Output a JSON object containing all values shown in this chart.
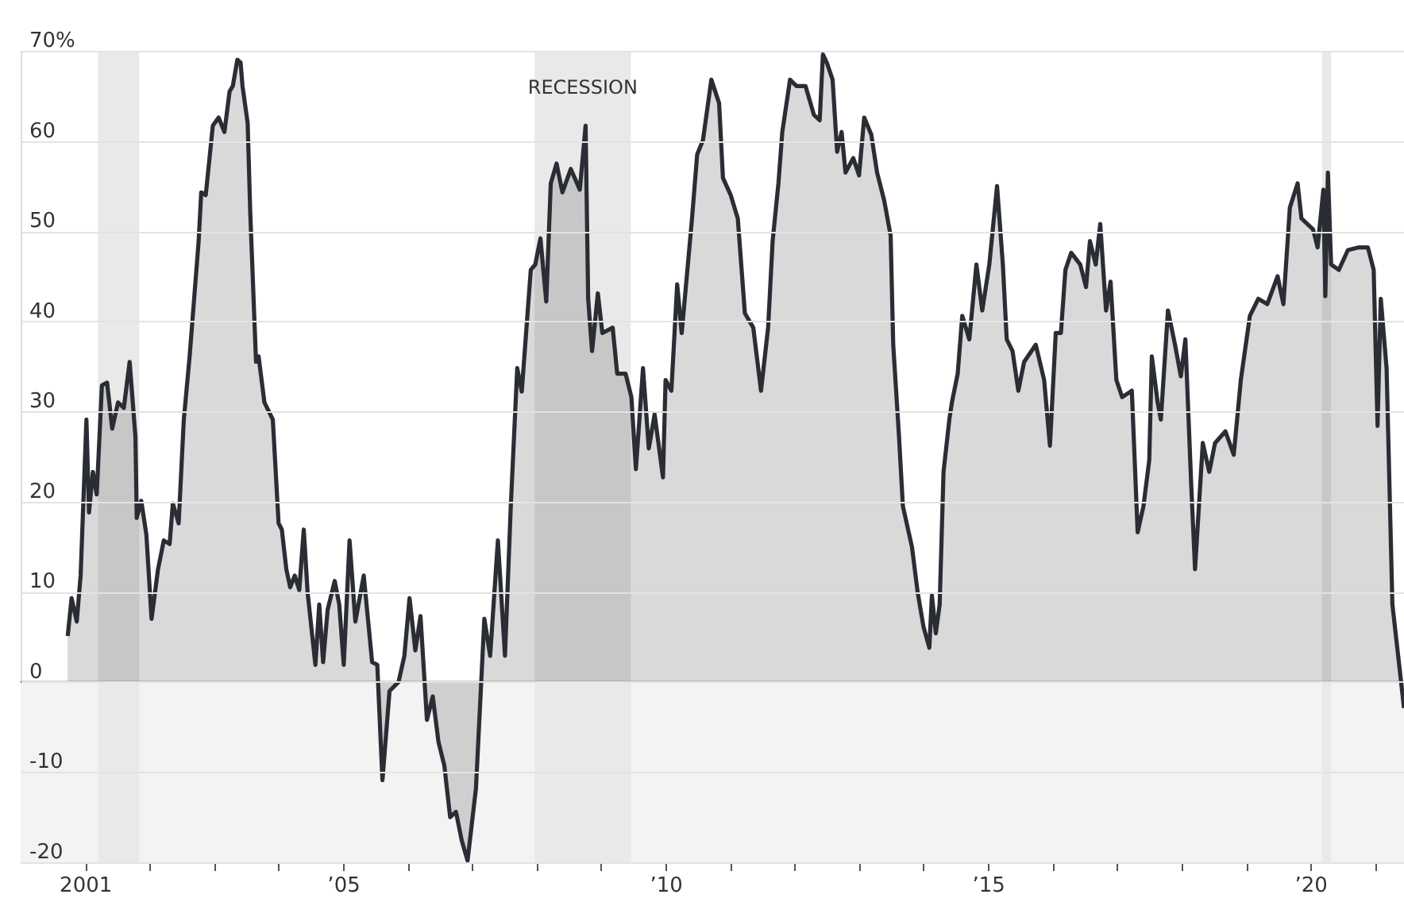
{
  "chart_data": {
    "type": "area",
    "x": [
      2000.73,
      2000.79,
      2000.87,
      2000.93,
      2001.02,
      2001.06,
      2001.12,
      2001.18,
      2001.26,
      2001.34,
      2001.42,
      2001.51,
      2001.6,
      2001.69,
      2001.78,
      2001.8,
      2001.87,
      2001.95,
      2002.03,
      2002.13,
      2002.22,
      2002.31,
      2002.36,
      2002.45,
      2002.53,
      2002.62,
      2002.76,
      2002.8,
      2002.87,
      2002.98,
      2003.07,
      2003.16,
      2003.24,
      2003.29,
      2003.36,
      2003.41,
      2003.44,
      2003.52,
      2003.56,
      2003.65,
      2003.69,
      2003.78,
      2003.91,
      2004.0,
      2004.05,
      2004.12,
      2004.18,
      2004.25,
      2004.32,
      2004.39,
      2004.45,
      2004.57,
      2004.63,
      2004.69,
      2004.76,
      2004.87,
      2004.94,
      2005.01,
      2005.1,
      2005.19,
      2005.32,
      2005.45,
      2005.53,
      2005.61,
      2005.72,
      2005.86,
      2005.95,
      2006.03,
      2006.12,
      2006.2,
      2006.3,
      2006.39,
      2006.48,
      2006.57,
      2006.66,
      2006.75,
      2006.84,
      2006.93,
      2007.06,
      2007.19,
      2007.28,
      2007.4,
      2007.51,
      2007.6,
      2007.7,
      2007.77,
      2007.91,
      2007.98,
      2008.06,
      2008.15,
      2008.22,
      2008.31,
      2008.4,
      2008.53,
      2008.67,
      2008.76,
      2008.8,
      2008.86,
      2008.95,
      2009.02,
      2009.18,
      2009.25,
      2009.38,
      2009.47,
      2009.54,
      2009.65,
      2009.74,
      2009.83,
      2009.96,
      2010.0,
      2010.09,
      2010.18,
      2010.25,
      2010.41,
      2010.49,
      2010.58,
      2010.71,
      2010.83,
      2010.89,
      2011.01,
      2011.12,
      2011.23,
      2011.36,
      2011.48,
      2011.59,
      2011.66,
      2011.75,
      2011.81,
      2011.93,
      2012.03,
      2012.17,
      2012.3,
      2012.39,
      2012.44,
      2012.5,
      2012.59,
      2012.66,
      2012.73,
      2012.79,
      2012.91,
      2013.0,
      2013.08,
      2013.19,
      2013.28,
      2013.39,
      2013.49,
      2013.53,
      2013.62,
      2013.68,
      2013.82,
      2013.91,
      2014.0,
      2014.09,
      2014.13,
      2014.19,
      2014.25,
      2014.31,
      2014.4,
      2014.44,
      2014.53,
      2014.6,
      2014.71,
      2014.82,
      2014.91,
      2015.02,
      2015.14,
      2015.23,
      2015.29,
      2015.38,
      2015.47,
      2015.56,
      2015.74,
      2015.87,
      2015.96,
      2016.05,
      2016.13,
      2016.2,
      2016.29,
      2016.43,
      2016.52,
      2016.58,
      2016.67,
      2016.74,
      2016.83,
      2016.9,
      2016.99,
      2017.08,
      2017.23,
      2017.32,
      2017.41,
      2017.5,
      2017.54,
      2017.63,
      2017.68,
      2017.79,
      2017.9,
      2017.99,
      2018.06,
      2018.15,
      2018.21,
      2018.33,
      2018.43,
      2018.52,
      2018.68,
      2018.81,
      2018.92,
      2019.06,
      2019.19,
      2019.33,
      2019.49,
      2019.58,
      2019.68,
      2019.8,
      2019.86,
      2020.04,
      2020.11,
      2020.2,
      2020.23,
      2020.27,
      2020.32,
      2020.44,
      2020.58,
      2020.75,
      2020.89,
      2020.98,
      2021.04,
      2021.09,
      2021.18,
      2021.27,
      2021.38,
      2021.45
    ],
    "series": [
      {
        "color": "#2a2d34",
        "values": [
          5.1,
          9.3,
          6.7,
          11.8,
          29.1,
          18.8,
          23.3,
          20.8,
          32.9,
          33.2,
          28.1,
          31.0,
          30.4,
          35.5,
          27.2,
          18.2,
          20.1,
          16.3,
          7.0,
          12.5,
          15.7,
          15.3,
          19.8,
          17.6,
          29.1,
          36.1,
          48.9,
          54.3,
          54.0,
          61.7,
          62.6,
          61.0,
          65.5,
          66.1,
          69.0,
          68.7,
          66.1,
          62.0,
          52.1,
          35.5,
          36.1,
          31.0,
          29.1,
          17.6,
          16.9,
          12.5,
          10.5,
          11.8,
          10.2,
          16.9,
          9.9,
          1.9,
          8.6,
          2.2,
          8.0,
          11.2,
          8.6,
          1.9,
          15.7,
          6.7,
          11.8,
          2.2,
          1.9,
          -10.9,
          -1.0,
          0,
          2.9,
          9.3,
          3.5,
          7.3,
          -4.2,
          -1.6,
          -6.7,
          -9.3,
          -15.0,
          -14.4,
          -17.6,
          -19.8,
          -11.8,
          7.0,
          2.9,
          15.7,
          2.9,
          19.5,
          34.8,
          32.2,
          45.7,
          46.3,
          49.2,
          42.2,
          55.3,
          57.5,
          54.3,
          56.9,
          54.6,
          61.7,
          42.5,
          36.7,
          43.1,
          38.7,
          39.3,
          34.2,
          34.2,
          31.6,
          23.6,
          34.8,
          25.9,
          29.7,
          22.7,
          33.5,
          32.3,
          44.1,
          38.7,
          51.4,
          58.5,
          60.1,
          66.8,
          64.2,
          55.9,
          54.0,
          51.4,
          40.9,
          39.3,
          32.3,
          39.3,
          48.9,
          55.3,
          61.0,
          66.8,
          66.1,
          66.1,
          62.9,
          62.3,
          69.6,
          68.7,
          66.8,
          58.8,
          61.0,
          56.5,
          58.1,
          56.2,
          62.6,
          60.7,
          56.5,
          53.4,
          49.5,
          37.4,
          27.2,
          19.5,
          15.0,
          9.9,
          6.1,
          3.8,
          9.6,
          5.4,
          8.6,
          23.3,
          29.1,
          31.0,
          34.2,
          40.6,
          38.0,
          46.3,
          41.2,
          46.3,
          55.0,
          46.3,
          38.0,
          36.7,
          32.3,
          35.5,
          37.4,
          33.5,
          26.2,
          38.7,
          38.7,
          45.7,
          47.6,
          46.3,
          43.8,
          48.9,
          46.3,
          50.8,
          41.2,
          44.4,
          33.5,
          31.6,
          32.3,
          16.6,
          19.5,
          24.6,
          36.1,
          31.0,
          29.1,
          41.2,
          37.4,
          33.9,
          38.0,
          22.0,
          12.5,
          26.5,
          23.3,
          26.5,
          27.8,
          25.2,
          33.5,
          40.6,
          42.5,
          41.9,
          45.0,
          41.9,
          52.6,
          55.3,
          51.4,
          50.2,
          48.2,
          54.6,
          42.8,
          56.5,
          46.3,
          45.7,
          47.9,
          48.2,
          48.2,
          45.7,
          28.4,
          42.5,
          34.8,
          8.6,
          1.6,
          -2.9
        ]
      }
    ],
    "xlim": [
      2000.0,
      2021.45
    ],
    "xticks": [
      {
        "value": 2001,
        "label": "2001"
      },
      {
        "value": 2002,
        "label": null
      },
      {
        "value": 2003,
        "label": null
      },
      {
        "value": 2004,
        "label": null
      },
      {
        "value": 2005,
        "label": "’05"
      },
      {
        "value": 2006,
        "label": null
      },
      {
        "value": 2007,
        "label": null
      },
      {
        "value": 2008,
        "label": null
      },
      {
        "value": 2009,
        "label": null
      },
      {
        "value": 2010,
        "label": "’10"
      },
      {
        "value": 2011,
        "label": null
      },
      {
        "value": 2012,
        "label": null
      },
      {
        "value": 2013,
        "label": null
      },
      {
        "value": 2014,
        "label": null
      },
      {
        "value": 2015,
        "label": "’15"
      },
      {
        "value": 2016,
        "label": null
      },
      {
        "value": 2017,
        "label": null
      },
      {
        "value": 2018,
        "label": null
      },
      {
        "value": 2019,
        "label": null
      },
      {
        "value": 2020,
        "label": "’20"
      },
      {
        "value": 2021,
        "label": null
      }
    ],
    "ylim": [
      -20,
      70
    ],
    "yticks": [
      -20,
      -10,
      0,
      10,
      20,
      30,
      40,
      50,
      {
        "value": 60,
        "label": "60"
      },
      {
        "value": 70,
        "label": "70%"
      }
    ],
    "grid": "y",
    "bands": [
      {
        "axis": "y",
        "from": -20,
        "to": 0,
        "color": "#f3f3f3"
      },
      {
        "axis": "x",
        "from": 2001.2,
        "to": 2001.84,
        "color": "#e9e9e9"
      },
      {
        "axis": "x",
        "from": 2007.97,
        "to": 2009.46,
        "color": "#e9e9e9",
        "label": "RECESSION"
      },
      {
        "axis": "x",
        "from": 2020.18,
        "to": 2020.32,
        "color": "#e9e9e9"
      }
    ],
    "ref_lines": [
      {
        "axis": "y",
        "value": 0,
        "color": "#555555"
      }
    ]
  }
}
